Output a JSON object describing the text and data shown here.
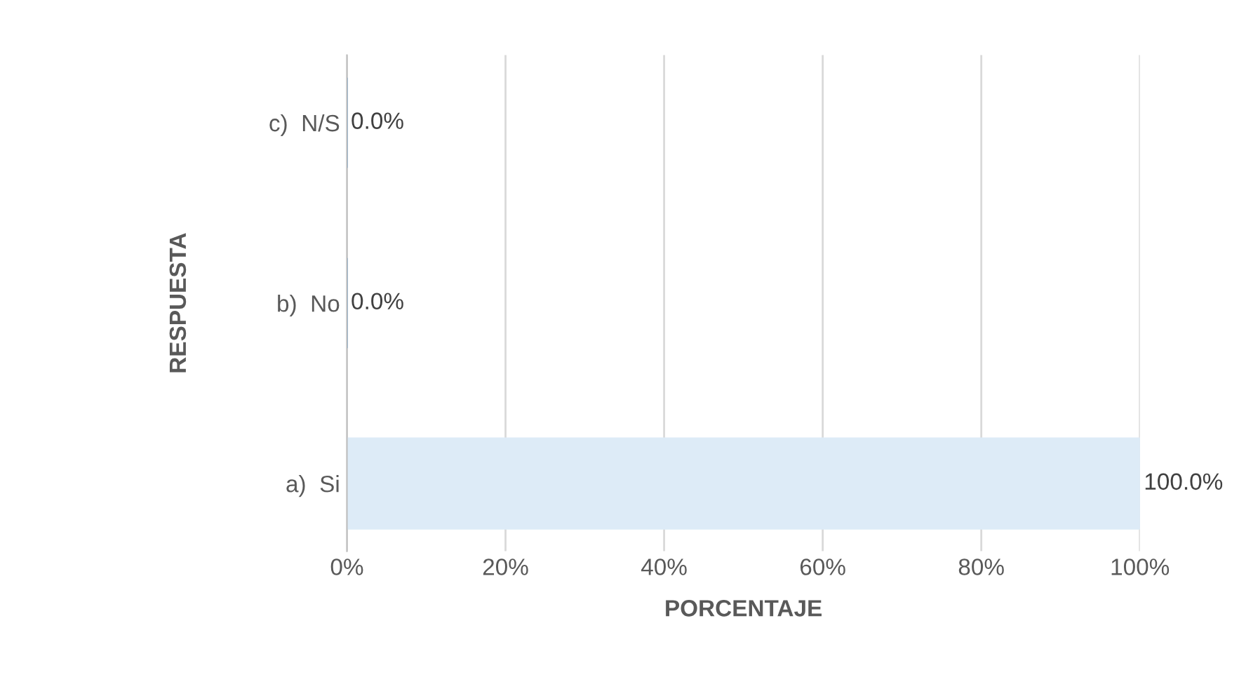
{
  "chart_data": {
    "type": "bar",
    "orientation": "horizontal",
    "xlabel": "PORCENTAJE",
    "ylabel": "RESPUESTA",
    "categories": [
      "c)  N/S",
      "b)  No",
      "a)  Si"
    ],
    "values": [
      0,
      0,
      100
    ],
    "colors": [
      "#5b9bd5",
      "#5b9bd5",
      "#ddebf7"
    ],
    "value_labels": [
      "0.0%",
      "0.0%",
      "100.0%"
    ],
    "xlim": [
      0,
      100
    ],
    "xticks": [
      {
        "value": 0,
        "label": "0%"
      },
      {
        "value": 20,
        "label": "20%"
      },
      {
        "value": 40,
        "label": "40%"
      },
      {
        "value": 60,
        "label": "60%"
      },
      {
        "value": 80,
        "label": "80%"
      },
      {
        "value": 100,
        "label": "100%"
      }
    ],
    "grid": "x",
    "legend": false
  }
}
